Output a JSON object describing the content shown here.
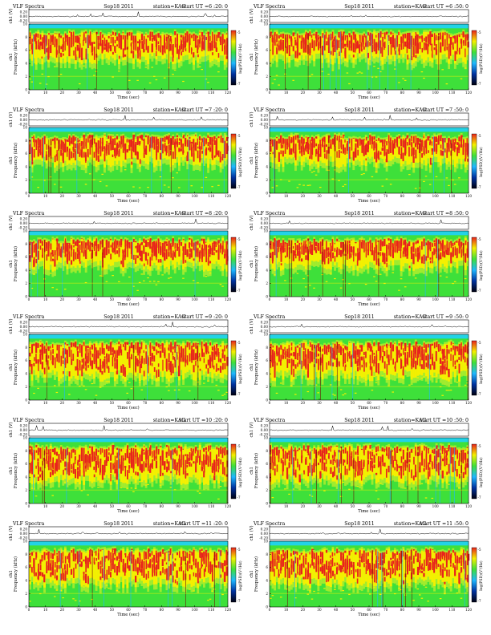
{
  "colors": {
    "cyan_band": "#22d3e6",
    "low": "#1fb8ff",
    "mid": "#3ee03a",
    "mid_high": "#b6ee2c",
    "high": "#f4f000",
    "peak": "#e8221c",
    "dark": "#6a1a0a",
    "trace": "#000000"
  },
  "chart_data": [
    {
      "type": "heatmap",
      "title_left": "VLF Spectra",
      "date": "Sep18 2011",
      "station": "station=KAG",
      "start": "start UT =6 :20: 0",
      "top_ylabel": "ch1 (V)",
      "top_ticks": [
        "0.20",
        "0.00",
        "-0.20"
      ],
      "ylabel_ch": "ch1",
      "ylabel": "Frequency (kHz)",
      "xlabel": "Time (sec)",
      "x_ticks": [
        0,
        10,
        20,
        30,
        40,
        50,
        60,
        70,
        80,
        90,
        100,
        110,
        120
      ],
      "y_ticks": [
        0,
        2,
        4,
        6,
        8,
        10
      ],
      "xlim": [
        0,
        120
      ],
      "ylim": [
        0,
        10
      ],
      "colorbar_label": "log(PSD)(V²/Hz)",
      "colorbar_ticks": [
        "-5",
        "-7"
      ],
      "colorbar_colors": [
        "#e8221c",
        "#f4f000",
        "#3ee03a",
        "#1fb8ff",
        "#0032a0",
        "#000010"
      ]
    },
    {
      "type": "heatmap",
      "title_left": "VLF Spectra",
      "date": "Sep18 2011",
      "station": "station=KAG",
      "start": "start UT =6 :50: 0",
      "top_ylabel": "ch1 (V)",
      "top_ticks": [
        "0.20",
        "0.00",
        "-0.20"
      ],
      "ylabel_ch": "ch1",
      "ylabel": "Frequency (kHz)",
      "xlabel": "Time (sec)",
      "x_ticks": [
        0,
        10,
        20,
        30,
        40,
        50,
        60,
        70,
        80,
        90,
        100,
        110,
        120
      ],
      "y_ticks": [
        0,
        2,
        4,
        6,
        8,
        10
      ],
      "xlim": [
        0,
        120
      ],
      "ylim": [
        0,
        10
      ],
      "colorbar_label": "log(PSD)(V²/Hz)",
      "colorbar_ticks": [
        "-5",
        "-7"
      ],
      "colorbar_colors": [
        "#e8221c",
        "#f4f000",
        "#3ee03a",
        "#1fb8ff",
        "#0032a0",
        "#000010"
      ]
    },
    {
      "type": "heatmap",
      "title_left": "VLF Spectra",
      "date": "Sep18 2011",
      "station": "station=KAG",
      "start": "start UT =7 :20: 0",
      "top_ylabel": "ch1 (V)",
      "top_ticks": [
        "0.20",
        "0.00",
        "-0.20"
      ],
      "ylabel_ch": "ch1",
      "ylabel": "Frequency (kHz)",
      "xlabel": "Time (sec)",
      "x_ticks": [
        0,
        10,
        20,
        30,
        40,
        50,
        60,
        70,
        80,
        90,
        100,
        110,
        120
      ],
      "y_ticks": [
        0,
        2,
        4,
        6,
        8,
        10
      ],
      "xlim": [
        0,
        120
      ],
      "ylim": [
        0,
        10
      ],
      "colorbar_label": "log(PSD)(V²/Hz)",
      "colorbar_ticks": [
        "-5",
        "-7"
      ],
      "colorbar_colors": [
        "#e8221c",
        "#f4f000",
        "#3ee03a",
        "#1fb8ff",
        "#0032a0",
        "#000010"
      ]
    },
    {
      "type": "heatmap",
      "title_left": "VLF Spectra",
      "date": "Sep18 2011",
      "station": "station=KAG",
      "start": "start UT =7 :50: 0",
      "top_ylabel": "ch1 (V)",
      "top_ticks": [
        "0.20",
        "0.00",
        "-0.20"
      ],
      "ylabel_ch": "ch1",
      "ylabel": "Frequency (kHz)",
      "xlabel": "Time (sec)",
      "x_ticks": [
        0,
        10,
        20,
        30,
        40,
        50,
        60,
        70,
        80,
        90,
        100,
        110,
        120
      ],
      "y_ticks": [
        0,
        2,
        4,
        6,
        8,
        10
      ],
      "xlim": [
        0,
        120
      ],
      "ylim": [
        0,
        10
      ],
      "colorbar_label": "log(PSD)(V²/Hz)",
      "colorbar_ticks": [
        "-5",
        "-7"
      ],
      "colorbar_colors": [
        "#e8221c",
        "#f4f000",
        "#3ee03a",
        "#1fb8ff",
        "#0032a0",
        "#000010"
      ]
    },
    {
      "type": "heatmap",
      "title_left": "VLF Spectra",
      "date": "Sep18 2011",
      "station": "station=KAG",
      "start": "start UT =8 :20: 0",
      "top_ylabel": "ch1 (V)",
      "top_ticks": [
        "0.20",
        "0.00",
        "-0.20"
      ],
      "ylabel_ch": "ch1",
      "ylabel": "Frequency (kHz)",
      "xlabel": "Time (sec)",
      "x_ticks": [
        0,
        10,
        20,
        30,
        40,
        50,
        60,
        70,
        80,
        90,
        100,
        110,
        120
      ],
      "y_ticks": [
        0,
        2,
        4,
        6,
        8,
        10
      ],
      "xlim": [
        0,
        120
      ],
      "ylim": [
        0,
        10
      ],
      "colorbar_label": "log(PSD)(V²/Hz)",
      "colorbar_ticks": [
        "-5",
        "-7"
      ],
      "colorbar_colors": [
        "#e8221c",
        "#f4f000",
        "#3ee03a",
        "#1fb8ff",
        "#0032a0",
        "#000010"
      ]
    },
    {
      "type": "heatmap",
      "title_left": "VLF Spectra",
      "date": "Sep18 2011",
      "station": "station=KAG",
      "start": "start UT =8 :50: 0",
      "top_ylabel": "ch1 (V)",
      "top_ticks": [
        "0.20",
        "0.00",
        "-0.20"
      ],
      "ylabel_ch": "ch1",
      "ylabel": "Frequency (kHz)",
      "xlabel": "Time (sec)",
      "x_ticks": [
        0,
        10,
        20,
        30,
        40,
        50,
        60,
        70,
        80,
        90,
        100,
        110,
        120
      ],
      "y_ticks": [
        0,
        2,
        4,
        6,
        8,
        10
      ],
      "xlim": [
        0,
        120
      ],
      "ylim": [
        0,
        10
      ],
      "colorbar_label": "log(PSD)(V²/Hz)",
      "colorbar_ticks": [
        "-5",
        "-7"
      ],
      "colorbar_colors": [
        "#e8221c",
        "#f4f000",
        "#3ee03a",
        "#1fb8ff",
        "#0032a0",
        "#000010"
      ]
    },
    {
      "type": "heatmap",
      "title_left": "VLF Spectra",
      "date": "Sep18 2011",
      "station": "station=KAG",
      "start": "start UT =9 :20: 0",
      "top_ylabel": "ch1 (V)",
      "top_ticks": [
        "0.20",
        "0.00",
        "-0.20"
      ],
      "ylabel_ch": "ch1",
      "ylabel": "Frequency (kHz)",
      "xlabel": "Time (sec)",
      "x_ticks": [
        0,
        10,
        20,
        30,
        40,
        50,
        60,
        70,
        80,
        90,
        100,
        110,
        120
      ],
      "y_ticks": [
        0,
        2,
        4,
        6,
        8,
        10
      ],
      "xlim": [
        0,
        120
      ],
      "ylim": [
        0,
        10
      ],
      "colorbar_label": "log(PSD)(V²/Hz)",
      "colorbar_ticks": [
        "-5",
        "-7"
      ],
      "colorbar_colors": [
        "#e8221c",
        "#f4f000",
        "#3ee03a",
        "#1fb8ff",
        "#0032a0",
        "#000010"
      ]
    },
    {
      "type": "heatmap",
      "title_left": "VLF Spectra",
      "date": "Sep18 2011",
      "station": "station=KAG",
      "start": "start UT =9 :50: 0",
      "top_ylabel": "ch1 (V)",
      "top_ticks": [
        "0.20",
        "0.00",
        "-0.20"
      ],
      "ylabel_ch": "ch1",
      "ylabel": "Frequency (kHz)",
      "xlabel": "Time (sec)",
      "x_ticks": [
        0,
        10,
        20,
        30,
        40,
        50,
        60,
        70,
        80,
        90,
        100,
        110,
        120
      ],
      "y_ticks": [
        0,
        2,
        4,
        6,
        8,
        10
      ],
      "xlim": [
        0,
        120
      ],
      "ylim": [
        0,
        10
      ],
      "colorbar_label": "log(PSD)(V²/Hz)",
      "colorbar_ticks": [
        "-5",
        "-7"
      ],
      "colorbar_colors": [
        "#e8221c",
        "#f4f000",
        "#3ee03a",
        "#1fb8ff",
        "#0032a0",
        "#000010"
      ]
    },
    {
      "type": "heatmap",
      "title_left": "VLF Spectra",
      "date": "Sep18 2011",
      "station": "station=KAG",
      "start": "start UT =10 :20: 0",
      "top_ylabel": "ch1 (V)",
      "top_ticks": [
        "0.20",
        "0.00",
        "-0.20"
      ],
      "ylabel_ch": "ch1",
      "ylabel": "Frequency (kHz)",
      "xlabel": "Time (sec)",
      "x_ticks": [
        0,
        10,
        20,
        30,
        40,
        50,
        60,
        70,
        80,
        90,
        100,
        110,
        120
      ],
      "y_ticks": [
        0,
        2,
        4,
        6,
        8,
        10
      ],
      "xlim": [
        0,
        120
      ],
      "ylim": [
        0,
        10
      ],
      "colorbar_label": "log(PSD)(V²/Hz)",
      "colorbar_ticks": [
        "-5",
        "-7"
      ],
      "colorbar_colors": [
        "#e8221c",
        "#f4f000",
        "#3ee03a",
        "#1fb8ff",
        "#0032a0",
        "#000010"
      ]
    },
    {
      "type": "heatmap",
      "title_left": "VLF Spectra",
      "date": "Sep18 2011",
      "station": "station=KAG",
      "start": "start UT =10 :50: 0",
      "top_ylabel": "ch1 (V)",
      "top_ticks": [
        "0.20",
        "0.00",
        "-0.20"
      ],
      "ylabel_ch": "ch1",
      "ylabel": "Frequency (kHz)",
      "xlabel": "Time (sec)",
      "x_ticks": [
        0,
        10,
        20,
        30,
        40,
        50,
        60,
        70,
        80,
        90,
        100,
        110,
        120
      ],
      "y_ticks": [
        0,
        2,
        4,
        6,
        8,
        10
      ],
      "xlim": [
        0,
        120
      ],
      "ylim": [
        0,
        10
      ],
      "colorbar_label": "log(PSD)(V²/Hz)",
      "colorbar_ticks": [
        "-5",
        "-7"
      ],
      "colorbar_colors": [
        "#e8221c",
        "#f4f000",
        "#3ee03a",
        "#1fb8ff",
        "#0032a0",
        "#000010"
      ]
    },
    {
      "type": "heatmap",
      "title_left": "VLF Spectra",
      "date": "Sep18 2011",
      "station": "station=KAG",
      "start": "start UT =11 :20: 0",
      "top_ylabel": "ch1 (V)",
      "top_ticks": [
        "0.20",
        "0.00",
        "-0.20"
      ],
      "ylabel_ch": "ch1",
      "ylabel": "Frequency (kHz)",
      "xlabel": "Time (sec)",
      "x_ticks": [
        0,
        10,
        20,
        30,
        40,
        50,
        60,
        70,
        80,
        90,
        100,
        110,
        120
      ],
      "y_ticks": [
        0,
        2,
        4,
        6,
        8,
        10
      ],
      "xlim": [
        0,
        120
      ],
      "ylim": [
        0,
        10
      ],
      "colorbar_label": "log(PSD)(V²/Hz)",
      "colorbar_ticks": [
        "-5",
        "-7"
      ],
      "colorbar_colors": [
        "#e8221c",
        "#f4f000",
        "#3ee03a",
        "#1fb8ff",
        "#0032a0",
        "#000010"
      ]
    },
    {
      "type": "heatmap",
      "title_left": "VLF Spectra",
      "date": "Sep18 2011",
      "station": "station=KAG",
      "start": "start UT =11 :50: 0",
      "top_ylabel": "ch1 (V)",
      "top_ticks": [
        "0.20",
        "0.00",
        "-0.20"
      ],
      "ylabel_ch": "ch1",
      "ylabel": "Frequency (kHz)",
      "xlabel": "Time (sec)",
      "x_ticks": [
        0,
        10,
        20,
        30,
        40,
        50,
        60,
        70,
        80,
        90,
        100,
        110,
        120
      ],
      "y_ticks": [
        0,
        2,
        4,
        6,
        8,
        10
      ],
      "xlim": [
        0,
        120
      ],
      "ylim": [
        0,
        10
      ],
      "colorbar_label": "log(PSD)(V²/Hz)",
      "colorbar_ticks": [
        "-5",
        "-7"
      ],
      "colorbar_colors": [
        "#e8221c",
        "#f4f000",
        "#3ee03a",
        "#1fb8ff",
        "#0032a0",
        "#000010"
      ]
    }
  ]
}
